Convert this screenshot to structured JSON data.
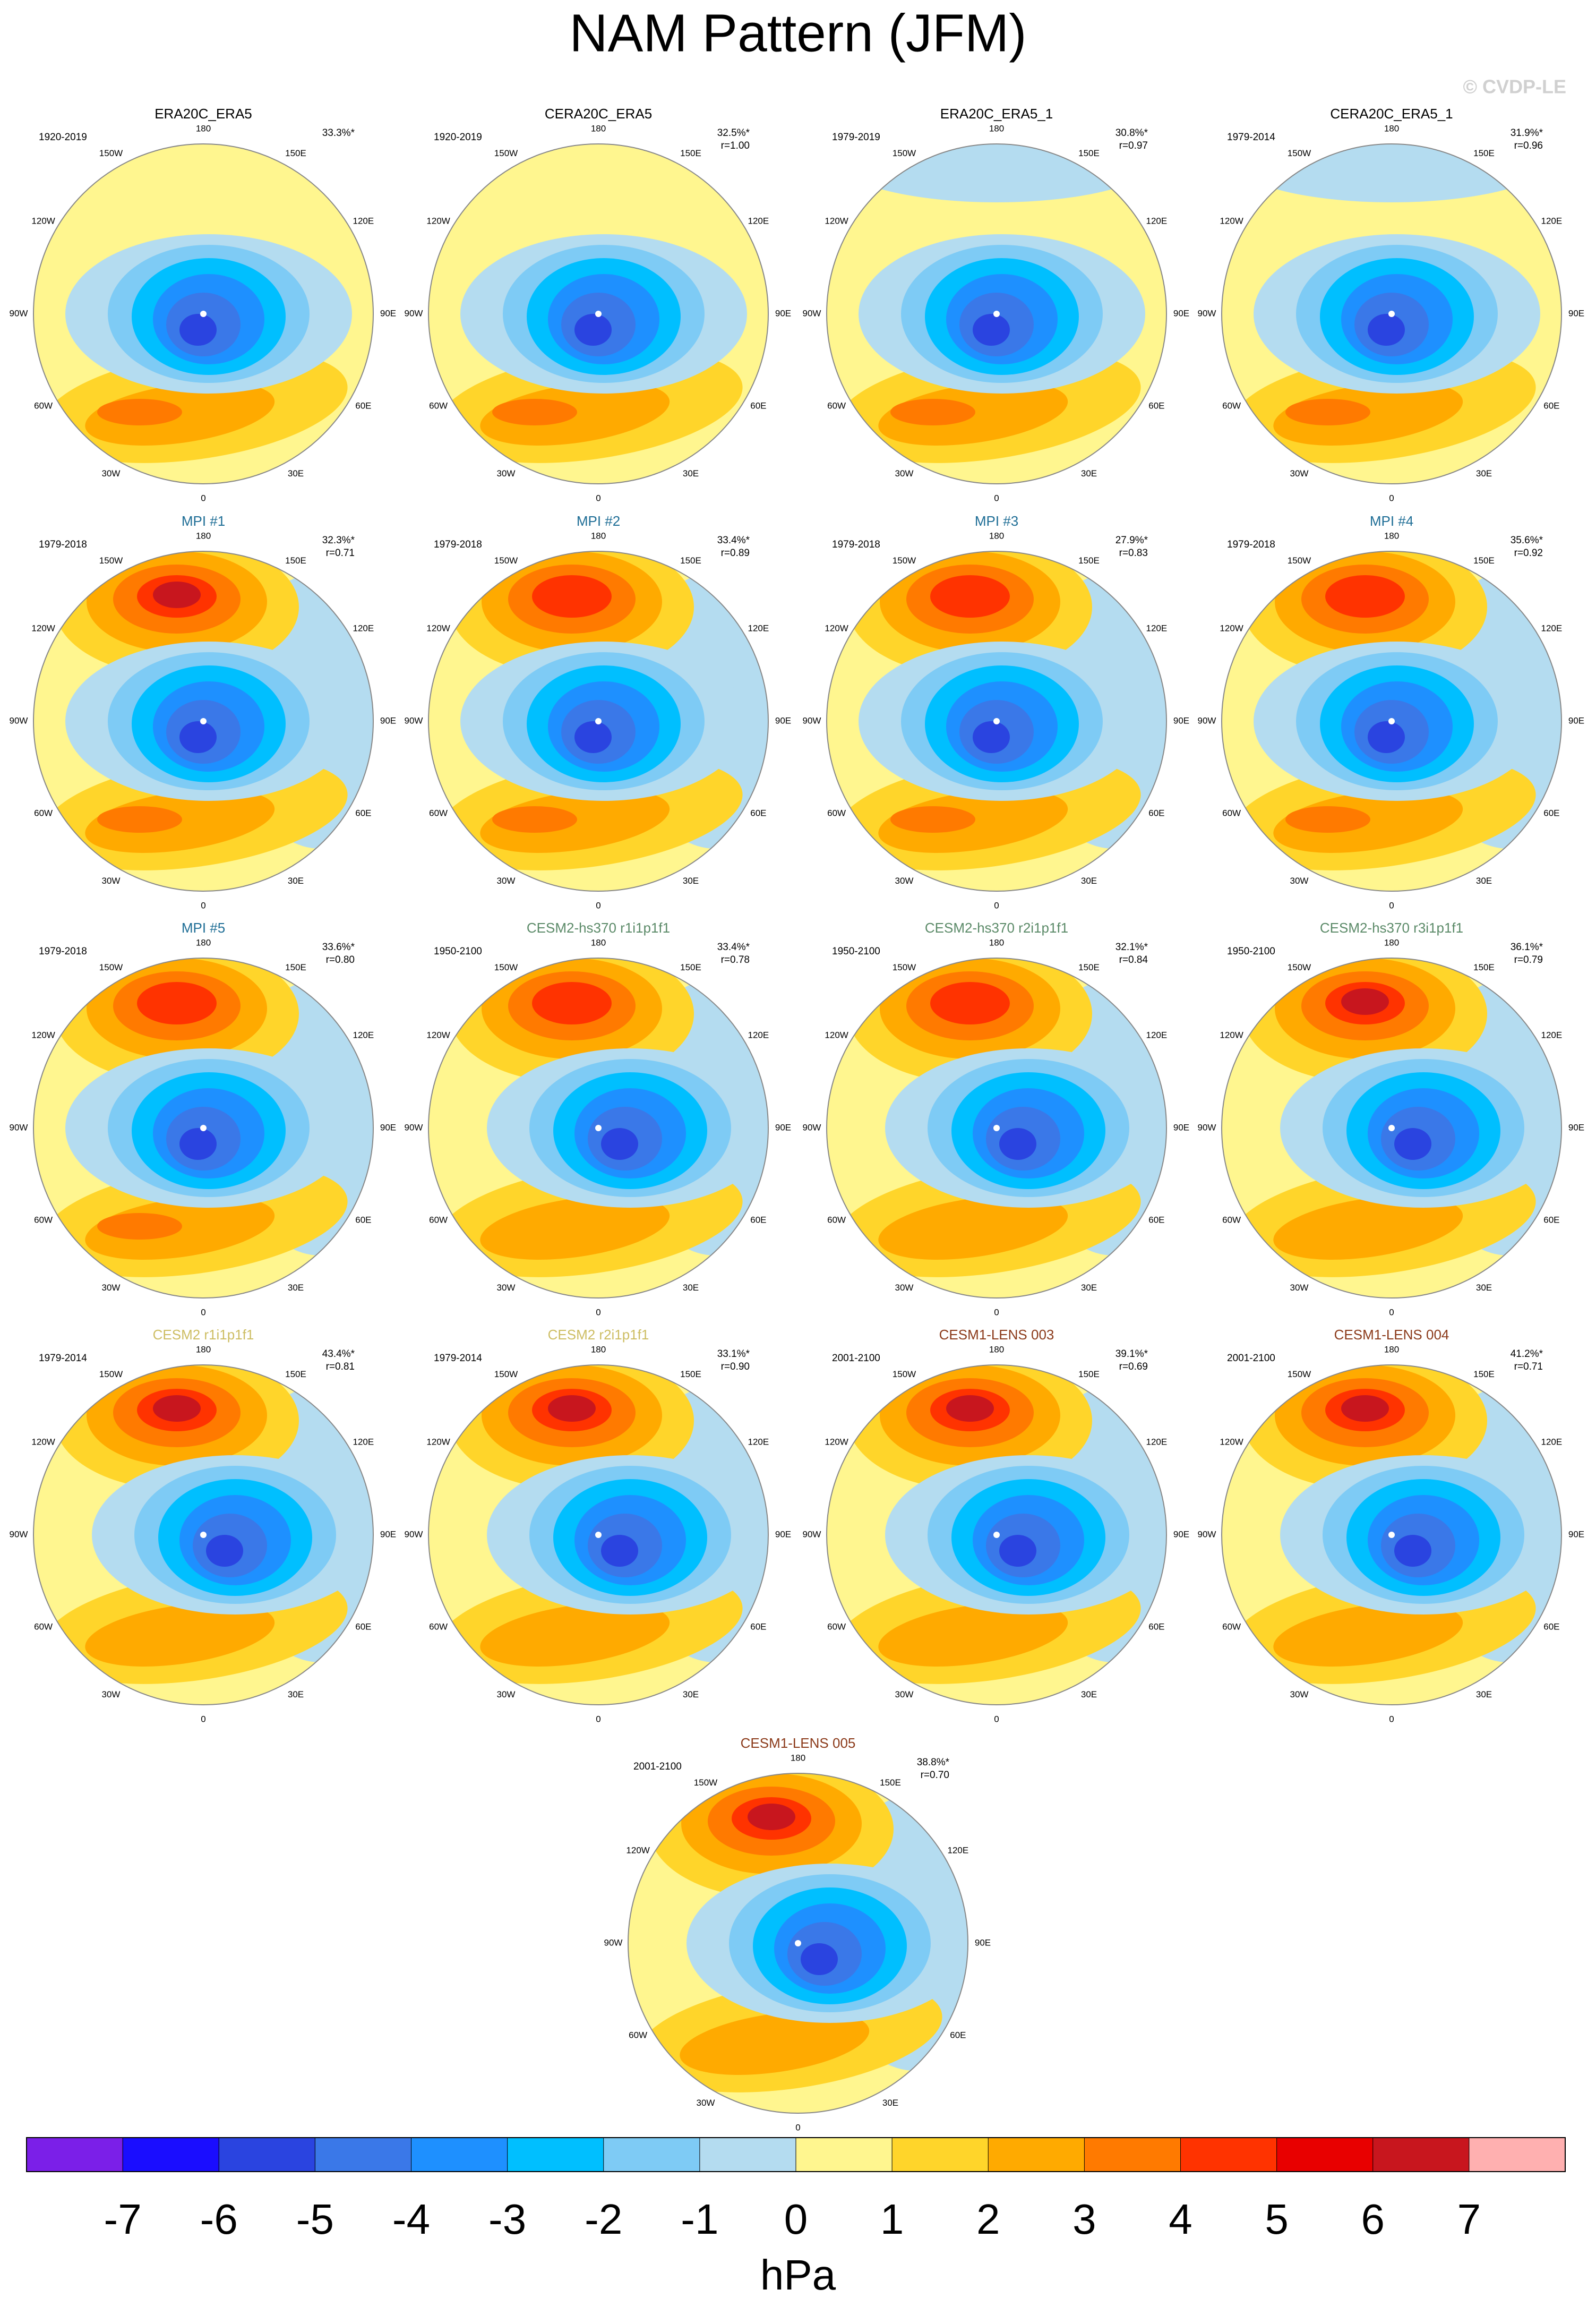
{
  "title": "NAM Pattern (JFM)",
  "watermark": "© CVDP-LE",
  "lon_labels": [
    "180",
    "150E",
    "120E",
    "90E",
    "60E",
    "30E",
    "0",
    "30W",
    "60W",
    "90W",
    "120W",
    "150W"
  ],
  "panels": [
    {
      "title": "ERA20C_ERA5",
      "title_color": "#000000",
      "period": "1920-2019",
      "pct": "33.3%*"
    },
    {
      "title": "CERA20C_ERA5",
      "title_color": "#000000",
      "period": "1920-2019",
      "pct": "32.5%*",
      "r": "r=1.00"
    },
    {
      "title": "ERA20C_ERA5_1",
      "title_color": "#000000",
      "period": "1979-2019",
      "pct": "30.8%*",
      "r": "r=0.97"
    },
    {
      "title": "CERA20C_ERA5_1",
      "title_color": "#000000",
      "period": "1979-2014",
      "pct": "31.9%*",
      "r": "r=0.96"
    },
    {
      "title": "MPI #1",
      "title_color": "#1f6e96",
      "period": "1979-2018",
      "pct": "32.3%*",
      "r": "r=0.71"
    },
    {
      "title": "MPI #2",
      "title_color": "#1f6e96",
      "period": "1979-2018",
      "pct": "33.4%*",
      "r": "r=0.89"
    },
    {
      "title": "MPI #3",
      "title_color": "#1f6e96",
      "period": "1979-2018",
      "pct": "27.9%*",
      "r": "r=0.83"
    },
    {
      "title": "MPI #4",
      "title_color": "#1f6e96",
      "period": "1979-2018",
      "pct": "35.6%*",
      "r": "r=0.92"
    },
    {
      "title": "MPI #5",
      "title_color": "#1f6e96",
      "period": "1979-2018",
      "pct": "33.6%*",
      "r": "r=0.80"
    },
    {
      "title": "CESM2-hs370 r1i1p1f1",
      "title_color": "#5b8a68",
      "period": "1950-2100",
      "pct": "33.4%*",
      "r": "r=0.78"
    },
    {
      "title": "CESM2-hs370 r2i1p1f1",
      "title_color": "#5b8a68",
      "period": "1950-2100",
      "pct": "32.1%*",
      "r": "r=0.84"
    },
    {
      "title": "CESM2-hs370 r3i1p1f1",
      "title_color": "#5b8a68",
      "period": "1950-2100",
      "pct": "36.1%*",
      "r": "r=0.79"
    },
    {
      "title": "CESM2 r1i1p1f1",
      "title_color": "#cdbd62",
      "period": "1979-2014",
      "pct": "43.4%*",
      "r": "r=0.81"
    },
    {
      "title": "CESM2 r2i1p1f1",
      "title_color": "#cdbd62",
      "period": "1979-2014",
      "pct": "33.1%*",
      "r": "r=0.90"
    },
    {
      "title": "CESM1-LENS 003",
      "title_color": "#8b3a1a",
      "period": "2001-2100",
      "pct": "39.1%*",
      "r": "r=0.69"
    },
    {
      "title": "CESM1-LENS 004",
      "title_color": "#8b3a1a",
      "period": "2001-2100",
      "pct": "41.2%*",
      "r": "r=0.71"
    },
    {
      "title": "CESM1-LENS 005",
      "title_color": "#8b3a1a",
      "period": "2001-2100",
      "pct": "38.8%*",
      "r": "r=0.70"
    }
  ],
  "colorbar": {
    "colors": [
      "#7b1fe8",
      "#1a0dff",
      "#2a44e0",
      "#3a78e8",
      "#1e90ff",
      "#00bfff",
      "#7ecbf5",
      "#b4dcf0",
      "#fff68f",
      "#ffd52a",
      "#ffaa00",
      "#ff7a00",
      "#ff3300",
      "#e80000",
      "#c8161e",
      "#ffb0b0"
    ],
    "ticks": [
      -7,
      -6,
      -5,
      -4,
      -3,
      -2,
      -1,
      0,
      1,
      2,
      3,
      4,
      5,
      6,
      7
    ],
    "unit": "hPa"
  }
}
